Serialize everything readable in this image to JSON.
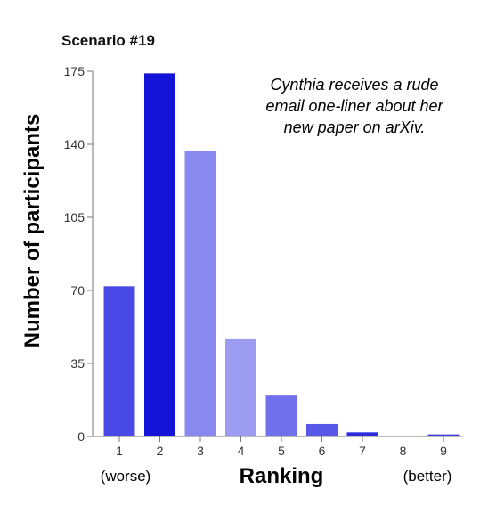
{
  "chart_data": {
    "type": "bar",
    "title": "Scenario #19",
    "annotation": [
      "Cynthia receives a rude",
      "email one-liner about her",
      "new paper on arXiv."
    ],
    "xlabel": "Ranking",
    "ylabel": "Number of participants",
    "x_low_label": "(worse)",
    "x_high_label": "(better)",
    "categories": [
      "1",
      "2",
      "3",
      "4",
      "5",
      "6",
      "7",
      "8",
      "9"
    ],
    "values": [
      72,
      174,
      137,
      47,
      20,
      6,
      2,
      0,
      1
    ],
    "colors": [
      "#4848e6",
      "#1414d8",
      "#8888ee",
      "#9c9cf2",
      "#7070ec",
      "#5858e8",
      "#2c2cdc",
      "#ffffff",
      "#3c3ce0"
    ],
    "yticks": [
      0,
      35,
      70,
      105,
      140,
      175
    ],
    "ylim": [
      0,
      175
    ],
    "grid": false
  }
}
